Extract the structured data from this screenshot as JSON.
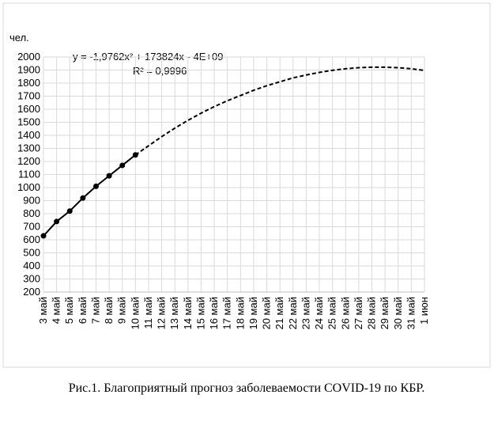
{
  "chart_data": {
    "type": "line",
    "y_label": "чел.",
    "annotations": [
      "y = -1,9762x² + 173824x - 4E+09",
      "R² = 0,9996"
    ],
    "caption": "Рис.1. Благоприятный прогноз заболеваемости COVID-19 по КБР.",
    "categories": [
      "3 май",
      "4 май",
      "5 май",
      "6 май",
      "7 май",
      "8 май",
      "9 май",
      "10 май",
      "11 май",
      "12 май",
      "13 май",
      "14 май",
      "15 май",
      "16 май",
      "17 май",
      "18 май",
      "19 май",
      "20 май",
      "21 май",
      "22 май",
      "23 май",
      "24 май",
      "25 май",
      "26 май",
      "27 май",
      "28 май",
      "29 май",
      "30 май",
      "31 май",
      "1 июн"
    ],
    "series": [
      {
        "color": "#000000",
        "style": "solid",
        "markers": true,
        "values": [
          630,
          740,
          820,
          920,
          1010,
          1090,
          1170,
          1250,
          null,
          null,
          null,
          null,
          null,
          null,
          null,
          null,
          null,
          null,
          null,
          null,
          null,
          null,
          null,
          null,
          null,
          null,
          null,
          null,
          null,
          null
        ]
      },
      {
        "color": "#000000",
        "style": "dashed",
        "markers": false,
        "values": [
          null,
          null,
          null,
          null,
          null,
          null,
          null,
          1250,
          1320,
          1390,
          1455,
          1515,
          1570,
          1620,
          1665,
          1705,
          1745,
          1780,
          1810,
          1840,
          1862,
          1882,
          1898,
          1910,
          1918,
          1922,
          1922,
          1918,
          1910,
          1897
        ]
      }
    ],
    "ylim": [
      200,
      2000
    ],
    "yticks": [
      200,
      300,
      400,
      500,
      600,
      700,
      800,
      900,
      1000,
      1100,
      1200,
      1300,
      1400,
      1500,
      1600,
      1700,
      1800,
      1900,
      2000
    ],
    "grid": true
  }
}
